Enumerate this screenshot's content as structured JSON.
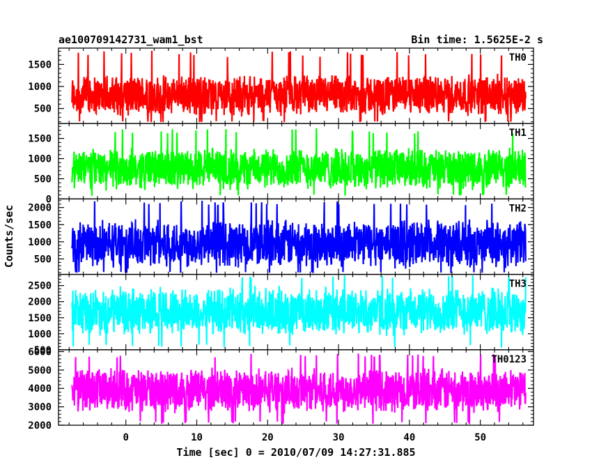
{
  "header": {
    "title": "ae100709142731_wam1_bst",
    "bin_time": "Bin time: 1.5625E-2 s"
  },
  "chart_data": {
    "type": "line",
    "render": "histogram-step light curve",
    "xlabel": "Time [sec] 0 = 2010/07/09 14:27:31.885",
    "ylabel": "Counts/sec",
    "xlim": [
      -9.5,
      57.5
    ],
    "data_x_range": [
      -7.6,
      56.4
    ],
    "bin_time_s": 0.015625,
    "x_ticks": [
      0,
      10,
      20,
      30,
      40,
      50
    ],
    "x_minor_step": 2,
    "grid": false,
    "panels": [
      {
        "name": "TH0",
        "color": "#ff0000",
        "ylim": [
          160,
          1870
        ],
        "y_ticks": [
          500,
          1000,
          1500
        ],
        "y_minor_step": 100,
        "typical_range": [
          300,
          1300
        ],
        "min_dip": 190,
        "max_peak": 1810
      },
      {
        "name": "TH1",
        "color": "#00ff00",
        "ylim": [
          0,
          1870
        ],
        "y_ticks": [
          0,
          500,
          1000,
          1500
        ],
        "y_minor_step": 100,
        "typical_range": [
          200,
          1300
        ],
        "min_dip": 80,
        "max_peak": 1760
      },
      {
        "name": "TH2",
        "color": "#0000ff",
        "ylim": [
          50,
          2250
        ],
        "y_ticks": [
          500,
          1000,
          1500,
          2000
        ],
        "y_minor_step": 100,
        "typical_range": [
          200,
          1700
        ],
        "min_dip": 90,
        "max_peak": 2200
      },
      {
        "name": "TH3",
        "color": "#00ffff",
        "ylim": [
          500,
          2850
        ],
        "y_ticks": [
          500,
          1000,
          1500,
          2000,
          2500
        ],
        "y_minor_step": 100,
        "typical_range": [
          900,
          2500
        ],
        "min_dip": 560,
        "max_peak": 2820
      },
      {
        "name": "TH0123",
        "color": "#ff00ff",
        "ylim": [
          2000,
          6100
        ],
        "y_ticks": [
          2000,
          3000,
          4000,
          5000,
          6000
        ],
        "y_minor_step": 200,
        "typical_range": [
          2600,
          5200
        ],
        "min_dip": 2050,
        "max_peak": 5900
      }
    ]
  }
}
